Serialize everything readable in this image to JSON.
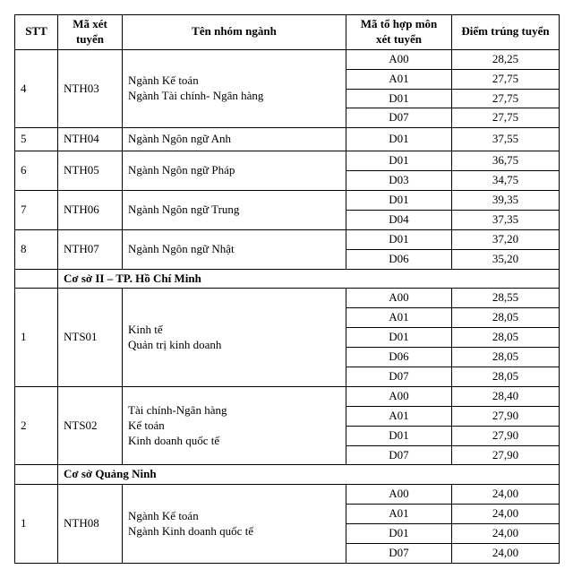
{
  "headers": {
    "stt": "STT",
    "code": "Mã xét tuyển",
    "name": "Tên nhóm ngành",
    "combo": "Mã tổ hợp môn xét tuyển",
    "score": "Điểm trúng tuyển"
  },
  "sections": [
    {
      "title": null,
      "rows": [
        {
          "stt": "4",
          "code": "NTH03",
          "name": "Ngành Kế toán\nNgành Tài chính- Ngân hàng",
          "combos": [
            {
              "c": "A00",
              "s": "28,25"
            },
            {
              "c": "A01",
              "s": "27,75"
            },
            {
              "c": "D01",
              "s": "27,75"
            },
            {
              "c": "D07",
              "s": "27,75"
            }
          ]
        },
        {
          "stt": "5",
          "code": "NTH04",
          "name": "Ngành Ngôn ngữ Anh",
          "combos": [
            {
              "c": "D01",
              "s": "37,55"
            }
          ]
        },
        {
          "stt": "6",
          "code": "NTH05",
          "name": "Ngành Ngôn ngữ Pháp",
          "combos": [
            {
              "c": "D01",
              "s": "36,75"
            },
            {
              "c": "D03",
              "s": "34,75"
            }
          ]
        },
        {
          "stt": "7",
          "code": "NTH06",
          "name": "Ngành Ngôn ngữ Trung",
          "combos": [
            {
              "c": "D01",
              "s": "39,35"
            },
            {
              "c": "D04",
              "s": "37,35"
            }
          ]
        },
        {
          "stt": "8",
          "code": "NTH07",
          "name": "Ngành Ngôn ngữ Nhật",
          "combos": [
            {
              "c": "D01",
              "s": "37,20"
            },
            {
              "c": "D06",
              "s": "35,20"
            }
          ]
        }
      ]
    },
    {
      "title": "Cơ sở II – TP. Hồ Chí Minh",
      "rows": [
        {
          "stt": "1",
          "code": "NTS01",
          "name": "Kinh tế\nQuản trị kinh doanh",
          "combos": [
            {
              "c": "A00",
              "s": "28,55"
            },
            {
              "c": "A01",
              "s": "28,05"
            },
            {
              "c": "D01",
              "s": "28,05"
            },
            {
              "c": "D06",
              "s": "28,05"
            },
            {
              "c": "D07",
              "s": "28,05"
            }
          ]
        },
        {
          "stt": "2",
          "code": "NTS02",
          "name": "Tài chính-Ngân hàng\nKế toán\nKinh doanh quốc tế",
          "combos": [
            {
              "c": "A00",
              "s": "28,40"
            },
            {
              "c": "A01",
              "s": "27,90"
            },
            {
              "c": "D01",
              "s": "27,90"
            },
            {
              "c": "D07",
              "s": "27,90"
            }
          ]
        }
      ]
    },
    {
      "title": "Cơ sở Quảng Ninh",
      "rows": [
        {
          "stt": "1",
          "code": "NTH08",
          "name": "Ngành Kế toán\nNgành Kinh doanh quốc tế",
          "combos": [
            {
              "c": "A00",
              "s": "24,00"
            },
            {
              "c": "A01",
              "s": "24,00"
            },
            {
              "c": "D01",
              "s": "24,00"
            },
            {
              "c": "D07",
              "s": "24,00"
            }
          ]
        }
      ]
    }
  ]
}
